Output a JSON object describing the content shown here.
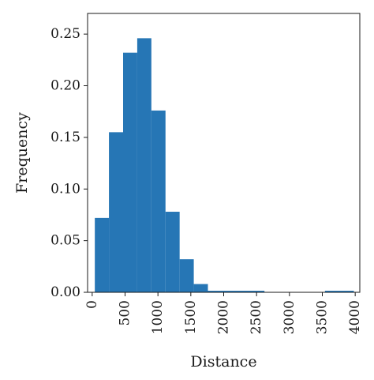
{
  "chart_data": {
    "type": "bar",
    "subtype": "histogram",
    "xlabel": "Distance",
    "ylabel": "Frequency",
    "xlim": [
      -70,
      4070
    ],
    "ylim": [
      0,
      0.27
    ],
    "x_ticks": [
      0,
      500,
      1000,
      1500,
      2000,
      2500,
      3000,
      3500,
      4000
    ],
    "y_ticks": [
      0.0,
      0.05,
      0.1,
      0.15,
      0.2,
      0.25
    ],
    "x_tick_labels": [
      "0",
      "500",
      "1000",
      "1500",
      "2000",
      "2500",
      "3000",
      "3500",
      "4000"
    ],
    "y_tick_labels": [
      "0.00",
      "0.05",
      "0.10",
      "0.15",
      "0.20",
      "0.25"
    ],
    "bar_color": "#2676b5",
    "bins": [
      {
        "x0": 40,
        "x1": 255,
        "value": 0.072
      },
      {
        "x0": 255,
        "x1": 470,
        "value": 0.155
      },
      {
        "x0": 470,
        "x1": 685,
        "value": 0.232
      },
      {
        "x0": 685,
        "x1": 900,
        "value": 0.246
      },
      {
        "x0": 900,
        "x1": 1115,
        "value": 0.176
      },
      {
        "x0": 1115,
        "x1": 1330,
        "value": 0.078
      },
      {
        "x0": 1330,
        "x1": 1545,
        "value": 0.032
      },
      {
        "x0": 1545,
        "x1": 1760,
        "value": 0.008
      },
      {
        "x0": 1760,
        "x1": 2620,
        "value": 0.0015
      },
      {
        "x0": 3540,
        "x1": 3980,
        "value": 0.0015
      }
    ],
    "grid": false,
    "legend": "none"
  }
}
